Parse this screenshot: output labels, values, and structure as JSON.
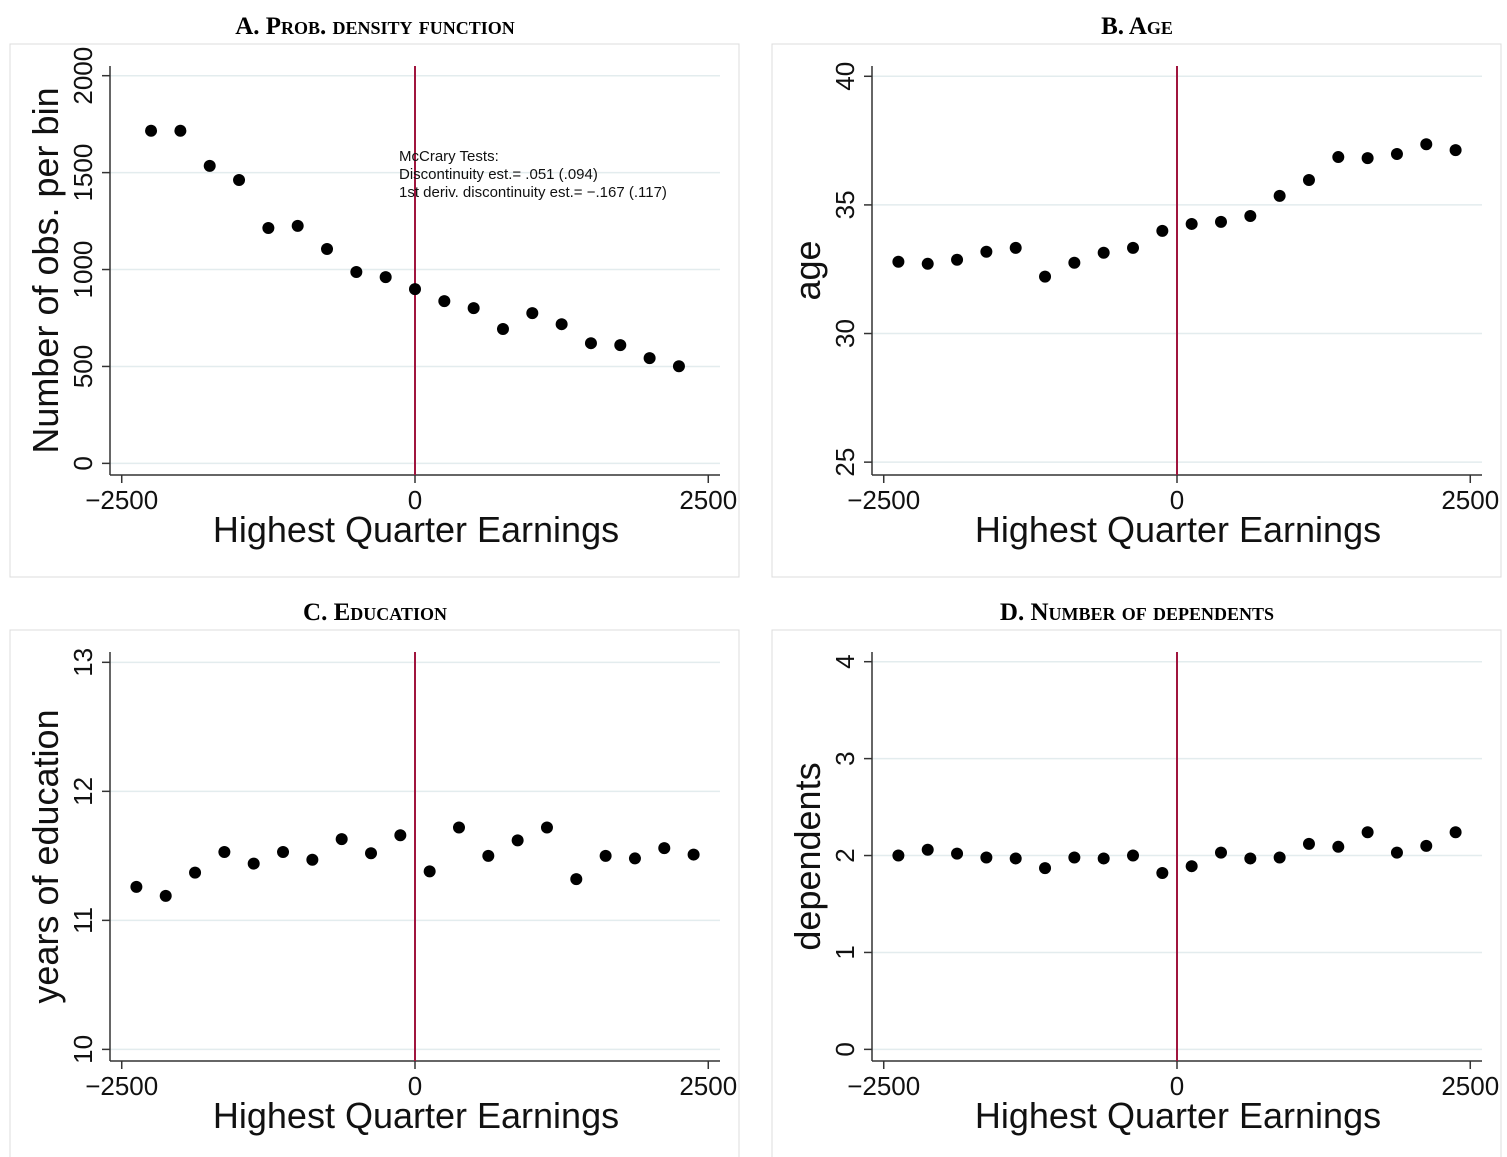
{
  "chart_data": [
    {
      "type": "scatter",
      "title": "A. Prob. density function",
      "xlabel": "Highest Quarter Earnings",
      "ylabel": "Number of obs. per bin",
      "x": [
        -2250,
        -2000,
        -1750,
        -1500,
        -1250,
        -1000,
        -750,
        -500,
        -250,
        0,
        250,
        500,
        750,
        1000,
        1250,
        1500,
        1750,
        2000,
        2250
      ],
      "series": [
        {
          "name": "Number of obs. per bin",
          "color": "#000000",
          "values": [
            1716,
            1716,
            1535,
            1462,
            1214,
            1225,
            1106,
            987,
            961,
            899,
            837,
            801,
            693,
            775,
            718,
            620,
            610,
            543,
            501
          ]
        }
      ],
      "xlim": [
        -2600,
        2600
      ],
      "ylim": [
        -60,
        2050
      ],
      "xticks": [
        {
          "value": -2500,
          "label": "−2500"
        },
        0,
        2500
      ],
      "yticks": [
        0,
        500,
        1000,
        1500,
        2000
      ],
      "cutoff": 0,
      "cutoff_color": "#a0153e",
      "grid": true,
      "annotations": [
        "McCrary Tests:",
        "Discontinuity est.= .051 (.094)",
        "1st deriv. discontinuity est.= −.167 (.117)"
      ]
    },
    {
      "type": "scatter",
      "title": "B. Age",
      "xlabel": "Highest Quarter Earnings",
      "ylabel": "age",
      "x": [
        -2375,
        -2125,
        -1875,
        -1625,
        -1375,
        -1125,
        -875,
        -625,
        -375,
        -125,
        125,
        375,
        625,
        875,
        1125,
        1375,
        1625,
        1875,
        2125,
        2375
      ],
      "series": [
        {
          "name": "age",
          "color": "#000000",
          "values": [
            32.79,
            32.71,
            32.87,
            33.18,
            33.33,
            32.21,
            32.75,
            33.14,
            33.33,
            33.99,
            34.26,
            34.34,
            34.57,
            35.35,
            35.97,
            36.86,
            36.82,
            36.98,
            37.36,
            37.13
          ]
        }
      ],
      "xlim": [
        -2600,
        2600
      ],
      "ylim": [
        24.5,
        40.4
      ],
      "xticks": [
        {
          "value": -2500,
          "label": "−2500"
        },
        0,
        2500
      ],
      "yticks": [
        25,
        30,
        35,
        40
      ],
      "cutoff": 0,
      "cutoff_color": "#a0153e",
      "grid": true
    },
    {
      "type": "scatter",
      "title": "C. Education",
      "xlabel": "Highest Quarter Earnings",
      "ylabel": "years of education",
      "x": [
        -2375,
        -2125,
        -1875,
        -1625,
        -1375,
        -1125,
        -875,
        -625,
        -375,
        -125,
        125,
        375,
        625,
        875,
        1125,
        1375,
        1625,
        1875,
        2125,
        2375
      ],
      "series": [
        {
          "name": "years of education",
          "color": "#000000",
          "values": [
            11.26,
            11.19,
            11.37,
            11.53,
            11.44,
            11.53,
            11.47,
            11.63,
            11.52,
            11.66,
            11.38,
            11.72,
            11.5,
            11.62,
            11.72,
            11.32,
            11.5,
            11.48,
            11.56,
            11.51
          ]
        }
      ],
      "xlim": [
        -2600,
        2600
      ],
      "ylim": [
        9.91,
        13.08
      ],
      "xticks": [
        {
          "value": -2500,
          "label": "−2500"
        },
        0,
        2500
      ],
      "yticks": [
        10,
        11,
        12,
        13
      ],
      "cutoff": 0,
      "cutoff_color": "#a0153e",
      "grid": true
    },
    {
      "type": "scatter",
      "title": "D. Number of dependents",
      "xlabel": "Highest Quarter Earnings",
      "ylabel": "dependents",
      "x": [
        -2375,
        -2125,
        -1875,
        -1625,
        -1375,
        -1125,
        -875,
        -625,
        -375,
        -125,
        125,
        375,
        625,
        875,
        1125,
        1375,
        1625,
        1875,
        2125,
        2375
      ],
      "series": [
        {
          "name": "dependents",
          "color": "#000000",
          "values": [
            2.0,
            2.06,
            2.02,
            1.98,
            1.97,
            1.87,
            1.98,
            1.97,
            2.0,
            1.82,
            1.89,
            2.03,
            1.97,
            1.98,
            2.12,
            2.09,
            2.24,
            2.03,
            2.1,
            2.24
          ]
        }
      ],
      "xlim": [
        -2600,
        2600
      ],
      "ylim": [
        -0.12,
        4.1
      ],
      "xticks": [
        {
          "value": -2500,
          "label": "−2500"
        },
        0,
        2500
      ],
      "yticks": [
        0,
        1,
        2,
        3,
        4
      ],
      "cutoff": 0,
      "cutoff_color": "#a0153e",
      "grid": true
    }
  ]
}
